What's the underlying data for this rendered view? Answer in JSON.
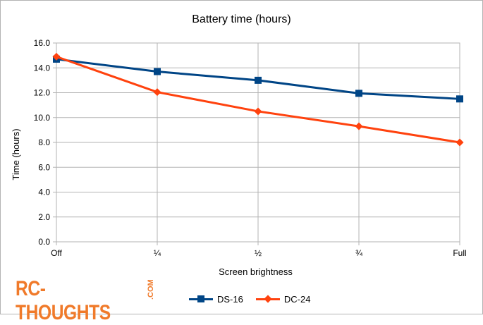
{
  "chart_data": {
    "type": "line",
    "title": "Battery time (hours)",
    "xlabel": "Screen brightness",
    "ylabel": "Time (hours)",
    "categories": [
      "Off",
      "¼",
      "½",
      "¾",
      "Full"
    ],
    "ylim": [
      0,
      16
    ],
    "yticks": [
      "0.0",
      "2.0",
      "4.0",
      "6.0",
      "8.0",
      "10.0",
      "12.0",
      "14.0",
      "16.0"
    ],
    "grid": true,
    "legend_position": "bottom",
    "series": [
      {
        "name": "DS-16",
        "values": [
          14.7,
          13.7,
          13.0,
          11.95,
          11.5
        ],
        "color": "#004586",
        "marker": "square"
      },
      {
        "name": "DC-24",
        "values": [
          14.9,
          12.05,
          10.5,
          9.3,
          8.0
        ],
        "color": "#ff420e",
        "marker": "diamond"
      }
    ]
  },
  "logo": {
    "text": "RC-THOUGHTS",
    "suffix": ".COM",
    "color": "#f07a2a"
  }
}
